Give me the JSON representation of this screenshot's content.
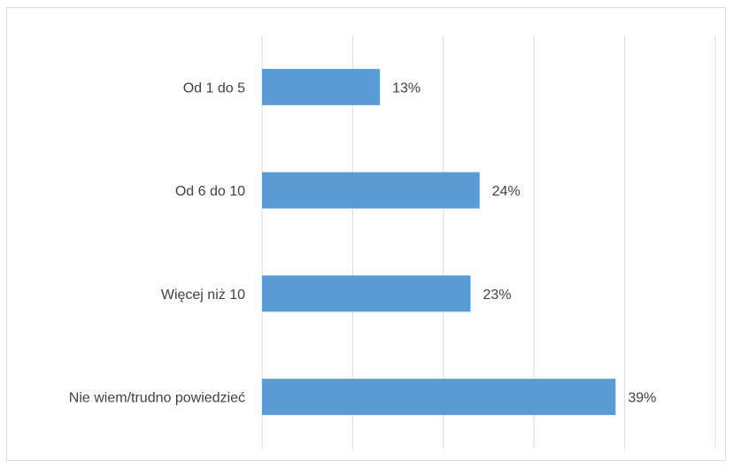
{
  "chart_data": {
    "type": "bar",
    "orientation": "horizontal",
    "categories": [
      "Od 1 do 5",
      "Od 6 do 10",
      "Więcej niż 10",
      "Nie wiem/trudno powiedzieć"
    ],
    "values": [
      13,
      24,
      23,
      39
    ],
    "data_labels": [
      "13%",
      "24%",
      "23%",
      "39%"
    ],
    "unit": "%",
    "title": "",
    "xlabel": "",
    "ylabel": "",
    "xlim": [
      0,
      50
    ],
    "grid": true,
    "legend": "none",
    "bar_color": "#5b9bd5",
    "grid_color": "#d9d9d9",
    "text_color": "#404040"
  }
}
